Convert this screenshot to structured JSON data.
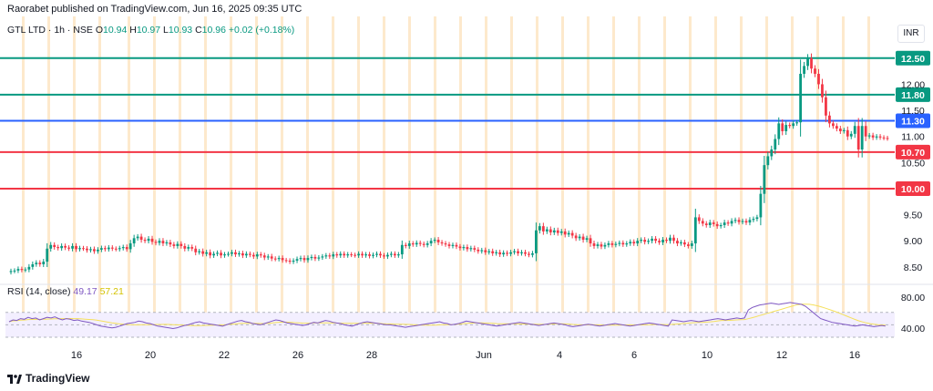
{
  "header": {
    "publisher": "Raorabet published on TradingView.com, Jun 16, 2025 09:35 UTC",
    "symbol": "GTL LTD · 1h · NSE",
    "o_label": "O",
    "o_value": "10.94",
    "h_label": "H",
    "h_value": "10.97",
    "l_label": "L",
    "l_value": "10.93",
    "c_label": "C",
    "c_value": "10.96",
    "change": "+0.02 (+0.18%)",
    "currency": "INR"
  },
  "rsi": {
    "label": "RSI (14, close)",
    "value": "49.17",
    "ma_value": "57.21",
    "scale": [
      "80.00",
      "40.00"
    ]
  },
  "footer": {
    "brand": "TradingView"
  },
  "colors": {
    "up": "#089981",
    "down": "#f23645",
    "resistance": "#089981",
    "pivot": "#2962ff",
    "support": "#f23645",
    "rsi": "#7e57c2",
    "rsi_ma": "#f5e642",
    "session": "#fde9cc"
  },
  "chart_data": {
    "type": "candlestick",
    "price_axis": {
      "min": 8.2,
      "max": 13.3,
      "ticks": [
        "12.00",
        "11.50",
        "11.00",
        "10.50",
        "9.50",
        "9.00",
        "8.50"
      ]
    },
    "x_ticks": [
      "16",
      "20",
      "22",
      "26",
      "28",
      "Jun",
      "4",
      "6",
      "10",
      "12",
      "16"
    ],
    "levels": [
      {
        "price": 12.5,
        "label": "12.50",
        "kind": "resistance"
      },
      {
        "price": 11.8,
        "label": "11.80",
        "kind": "resistance"
      },
      {
        "price": 11.3,
        "label": "11.30",
        "kind": "pivot"
      },
      {
        "price": 10.7,
        "label": "10.70",
        "kind": "support"
      },
      {
        "price": 10.0,
        "label": "10.00",
        "kind": "support"
      }
    ],
    "closes": [
      8.42,
      8.43,
      8.46,
      8.44,
      8.45,
      8.5,
      8.55,
      8.58,
      8.55,
      8.6,
      8.85,
      8.92,
      8.88,
      8.86,
      8.9,
      8.87,
      8.85,
      8.9,
      8.84,
      8.86,
      8.85,
      8.82,
      8.84,
      8.8,
      8.83,
      8.86,
      8.84,
      8.87,
      8.85,
      8.84,
      8.86,
      8.88,
      8.84,
      8.95,
      9.05,
      9.08,
      9.02,
      9.0,
      9.04,
      8.98,
      8.96,
      9.0,
      8.95,
      8.97,
      8.93,
      8.9,
      8.94,
      8.9,
      8.85,
      8.88,
      8.85,
      8.78,
      8.8,
      8.75,
      8.78,
      8.72,
      8.75,
      8.77,
      8.72,
      8.74,
      8.75,
      8.78,
      8.74,
      8.76,
      8.72,
      8.75,
      8.73,
      8.7,
      8.74,
      8.72,
      8.68,
      8.7,
      8.66,
      8.65,
      8.67,
      8.63,
      8.62,
      8.6,
      8.62,
      8.65,
      8.67,
      8.63,
      8.67,
      8.69,
      8.66,
      8.68,
      8.7,
      8.72,
      8.7,
      8.74,
      8.72,
      8.75,
      8.72,
      8.74,
      8.73,
      8.72,
      8.75,
      8.72,
      8.74,
      8.71,
      8.73,
      8.75,
      8.72,
      8.7,
      8.73,
      8.75,
      8.72,
      8.74,
      8.92,
      8.9,
      8.95,
      8.93,
      8.96,
      8.94,
      8.92,
      8.95,
      9.0,
      9.02,
      8.97,
      8.95,
      8.93,
      8.9,
      8.92,
      8.89,
      8.86,
      8.88,
      8.84,
      8.86,
      8.83,
      8.8,
      8.82,
      8.78,
      8.8,
      8.76,
      8.78,
      8.74,
      8.77,
      8.75,
      8.78,
      8.8,
      8.76,
      8.78,
      8.75,
      8.73,
      8.76,
      9.2,
      9.28,
      9.18,
      9.22,
      9.16,
      9.2,
      9.15,
      9.18,
      9.12,
      9.15,
      9.1,
      9.05,
      9.08,
      9.02,
      9.05,
      8.95,
      8.9,
      8.93,
      8.89,
      8.92,
      8.95,
      8.92,
      8.94,
      8.96,
      8.93,
      8.95,
      8.98,
      8.95,
      9.0,
      9.02,
      8.98,
      9.0,
      9.04,
      9.0,
      8.97,
      9.02,
      9.0,
      9.06,
      9.0,
      8.95,
      8.97,
      8.93,
      8.9,
      8.95,
      9.45,
      9.38,
      9.33,
      9.3,
      9.35,
      9.32,
      9.28,
      9.3,
      9.35,
      9.33,
      9.38,
      9.4,
      9.36,
      9.38,
      9.35,
      9.4,
      9.42,
      9.45,
      9.9,
      10.45,
      10.62,
      10.75,
      10.95,
      11.25,
      11.1,
      11.22,
      11.2,
      11.25,
      11.27,
      12.2,
      12.35,
      12.5,
      12.3,
      12.2,
      12.0,
      11.75,
      11.4,
      11.25,
      11.2,
      11.15,
      11.1,
      11.12,
      11.0,
      11.05,
      11.2,
      10.75,
      11.2,
      11.0,
      11.02,
      10.98,
      11.0,
      10.98,
      10.97,
      10.96
    ],
    "rsi_values": [
      55,
      58,
      57,
      60,
      59,
      62,
      60,
      61,
      58,
      60,
      62,
      61,
      63,
      60,
      58,
      60,
      59,
      57,
      58,
      56,
      55,
      54,
      52,
      50,
      48,
      47,
      46,
      45,
      46,
      48,
      50,
      52,
      53,
      54,
      56,
      55,
      53,
      52,
      50,
      48,
      47,
      46,
      45,
      44,
      45,
      47,
      49,
      50,
      52,
      54,
      55,
      53,
      52,
      51,
      50,
      49,
      48,
      50,
      52,
      54,
      56,
      57,
      55,
      54,
      52,
      51,
      50,
      52,
      54,
      56,
      58,
      57,
      55,
      53,
      52,
      51,
      50,
      49,
      50,
      52,
      54,
      53,
      55,
      57,
      56,
      54,
      53,
      52,
      50,
      49,
      48,
      50,
      52,
      54,
      55,
      54,
      53,
      52,
      51,
      50,
      50,
      49,
      48,
      47,
      46,
      47,
      48,
      49,
      50,
      51,
      52,
      53,
      54,
      55,
      53,
      52,
      50,
      51,
      52,
      54,
      56,
      55,
      54,
      53,
      52,
      51,
      50,
      49,
      48,
      49,
      50,
      51,
      52,
      53,
      54,
      53,
      52,
      51,
      50,
      49,
      50,
      51,
      52,
      53,
      52,
      51,
      50,
      48,
      47,
      48,
      49,
      50,
      51,
      50,
      49,
      48,
      49,
      50,
      51,
      52,
      51,
      50,
      49,
      48,
      49,
      50,
      51,
      52,
      53,
      52,
      51,
      50,
      49,
      48,
      58,
      57,
      56,
      55,
      56,
      57,
      56,
      55,
      56,
      57,
      58,
      59,
      60,
      59,
      58,
      59,
      60,
      61,
      60,
      61,
      74,
      78,
      80,
      82,
      83,
      84,
      85,
      84,
      83,
      84,
      85,
      86,
      85,
      84,
      83,
      80,
      75,
      70,
      65,
      60,
      58,
      56,
      54,
      53,
      52,
      51,
      50,
      49,
      48,
      49,
      50,
      49,
      48,
      47,
      48,
      49,
      48
    ]
  }
}
